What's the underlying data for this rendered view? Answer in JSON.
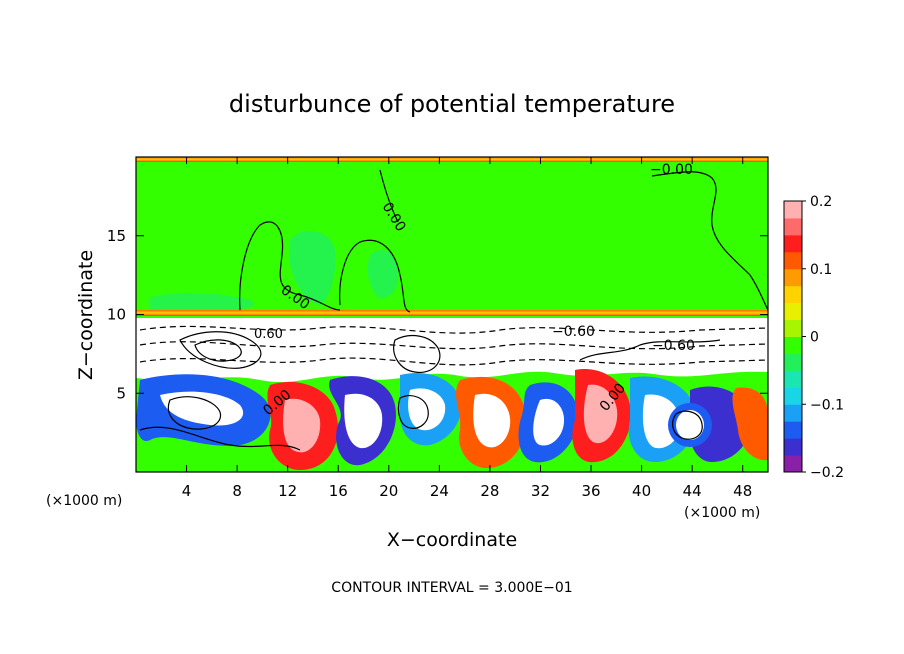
{
  "chart_data": {
    "type": "heatmap",
    "title": "disturbunce of potential temperature",
    "xlabel": "X−coordinate",
    "ylabel": "Z−coordinate",
    "x_unit": "(×1000 m)",
    "z_unit": "(×1000 m)",
    "footer": "CONTOUR INTERVAL = 3.000E−01",
    "xlim": [
      0,
      50
    ],
    "ylim": [
      0,
      20
    ],
    "x_ticks": [
      "4",
      "8",
      "12",
      "16",
      "20",
      "24",
      "28",
      "32",
      "36",
      "40",
      "44",
      "48"
    ],
    "y_ticks": [
      "5",
      "10",
      "15"
    ],
    "colorbar": {
      "range": [
        -0.2,
        0.2
      ],
      "tick_labels": [
        "0.2",
        "0.1",
        "0",
        "−0.1",
        "−0.2"
      ],
      "colors": [
        "#8a1fa8",
        "#3b2fd0",
        "#1c5cf0",
        "#1aa0f5",
        "#19d6e6",
        "#19e6b0",
        "#22f05a",
        "#33ff00",
        "#a8f500",
        "#e8f000",
        "#ffd200",
        "#ff9a00",
        "#ff5a00",
        "#ff1e1e",
        "#ff6b6b",
        "#ffb0b0"
      ]
    },
    "contour_labels": [
      "−0.00",
      "0.00",
      "0.00",
      "−0.60",
      "0.60",
      "−0.60",
      "0.00",
      "0.00"
    ],
    "upper_field_value": 0.0
  }
}
